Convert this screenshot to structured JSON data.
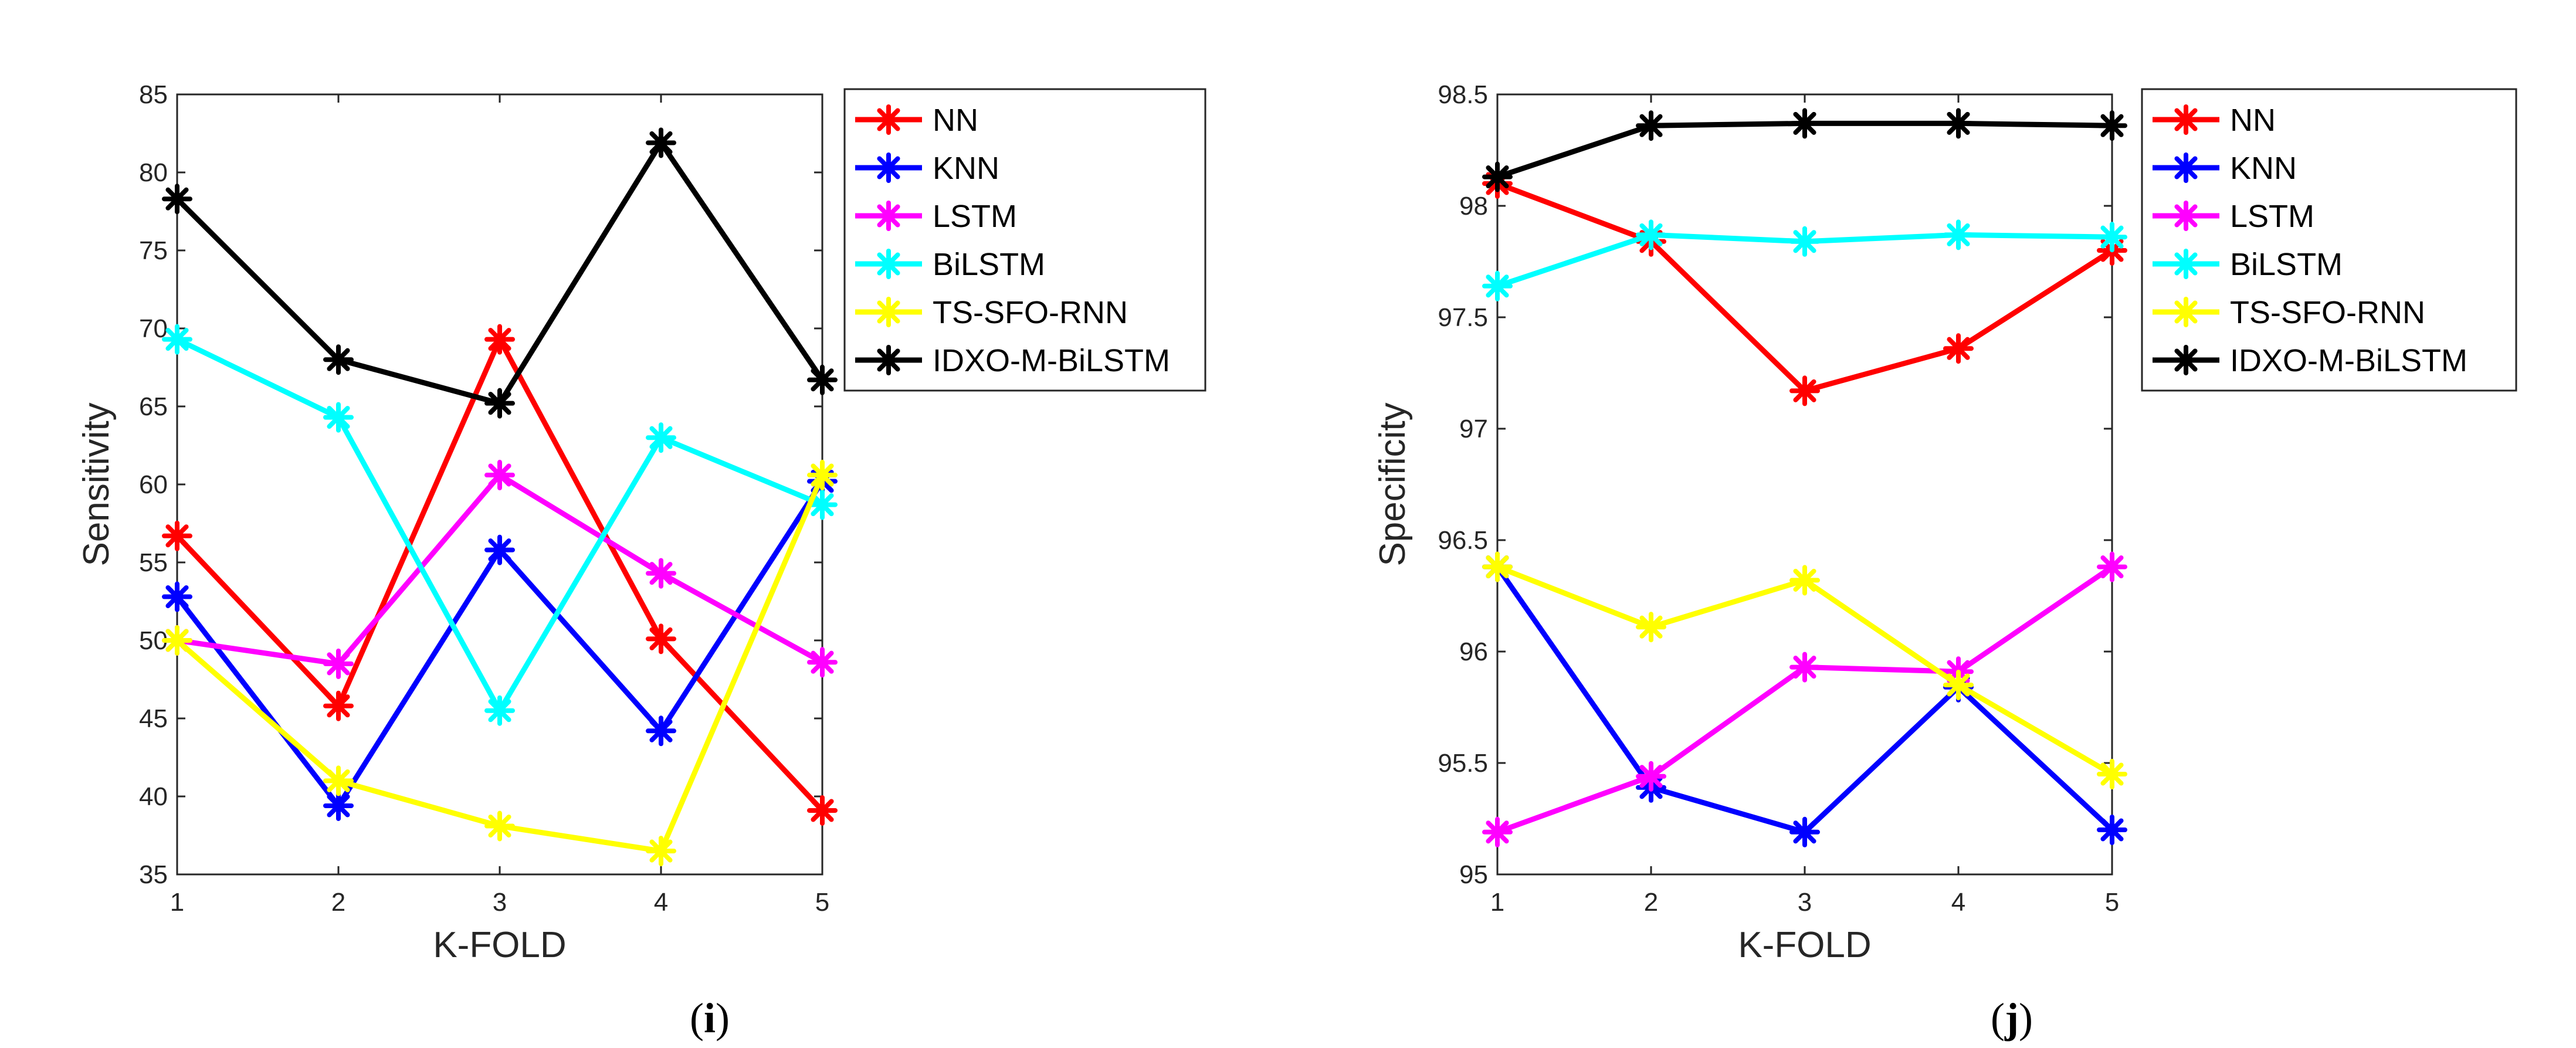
{
  "chart_data": [
    {
      "type": "line",
      "panel_label": "(i)",
      "xlabel": "K-FOLD",
      "ylabel": "Sensitivity",
      "x": [
        1,
        2,
        3,
        4,
        5
      ],
      "xticks": [
        "1",
        "2",
        "3",
        "4",
        "5"
      ],
      "ylim": [
        35,
        85
      ],
      "yticks": [
        "35",
        "40",
        "45",
        "50",
        "55",
        "60",
        "65",
        "70",
        "75",
        "80",
        "85"
      ],
      "legend_position": "outside-right-top",
      "series": [
        {
          "name": "NN",
          "color": "#ff0000",
          "values": [
            56.7,
            45.8,
            69.3,
            50.1,
            39.1
          ]
        },
        {
          "name": "KNN",
          "color": "#0000ff",
          "values": [
            52.8,
            39.4,
            55.8,
            44.2,
            60.2
          ]
        },
        {
          "name": "LSTM",
          "color": "#ff00ff",
          "values": [
            50.0,
            48.5,
            60.6,
            54.3,
            48.6
          ]
        },
        {
          "name": "BiLSTM",
          "color": "#00ffff",
          "values": [
            69.3,
            64.3,
            45.5,
            63.0,
            58.7
          ]
        },
        {
          "name": "TS-SFO-RNN",
          "color": "#ffff00",
          "values": [
            50.0,
            41.0,
            38.1,
            36.5,
            60.6
          ]
        },
        {
          "name": "IDXO-M-BiLSTM",
          "color": "#000000",
          "values": [
            78.3,
            68.0,
            65.2,
            81.9,
            66.7
          ]
        }
      ]
    },
    {
      "type": "line",
      "panel_label": "(j)",
      "xlabel": "K-FOLD",
      "ylabel": "Specificity",
      "x": [
        1,
        2,
        3,
        4,
        5
      ],
      "xticks": [
        "1",
        "2",
        "3",
        "4",
        "5"
      ],
      "ylim": [
        95,
        98.5
      ],
      "yticks": [
        "95",
        "95.5",
        "96",
        "96.5",
        "97",
        "97.5",
        "98",
        "98.5"
      ],
      "legend_position": "outside-right-top",
      "series": [
        {
          "name": "NN",
          "color": "#ff0000",
          "values": [
            98.1,
            97.84,
            97.17,
            97.36,
            97.8
          ]
        },
        {
          "name": "KNN",
          "color": "#0000ff",
          "values": [
            96.38,
            95.39,
            95.19,
            95.84,
            95.2
          ]
        },
        {
          "name": "LSTM",
          "color": "#ff00ff",
          "values": [
            95.19,
            95.44,
            95.93,
            95.91,
            96.38
          ]
        },
        {
          "name": "BiLSTM",
          "color": "#00ffff",
          "values": [
            97.64,
            97.87,
            97.84,
            97.87,
            97.86
          ]
        },
        {
          "name": "TS-SFO-RNN",
          "color": "#ffff00",
          "values": [
            96.38,
            96.11,
            96.32,
            95.85,
            95.45
          ]
        },
        {
          "name": "IDXO-M-BiLSTM",
          "color": "#000000",
          "values": [
            98.13,
            98.36,
            98.37,
            98.37,
            98.36
          ]
        }
      ]
    }
  ]
}
